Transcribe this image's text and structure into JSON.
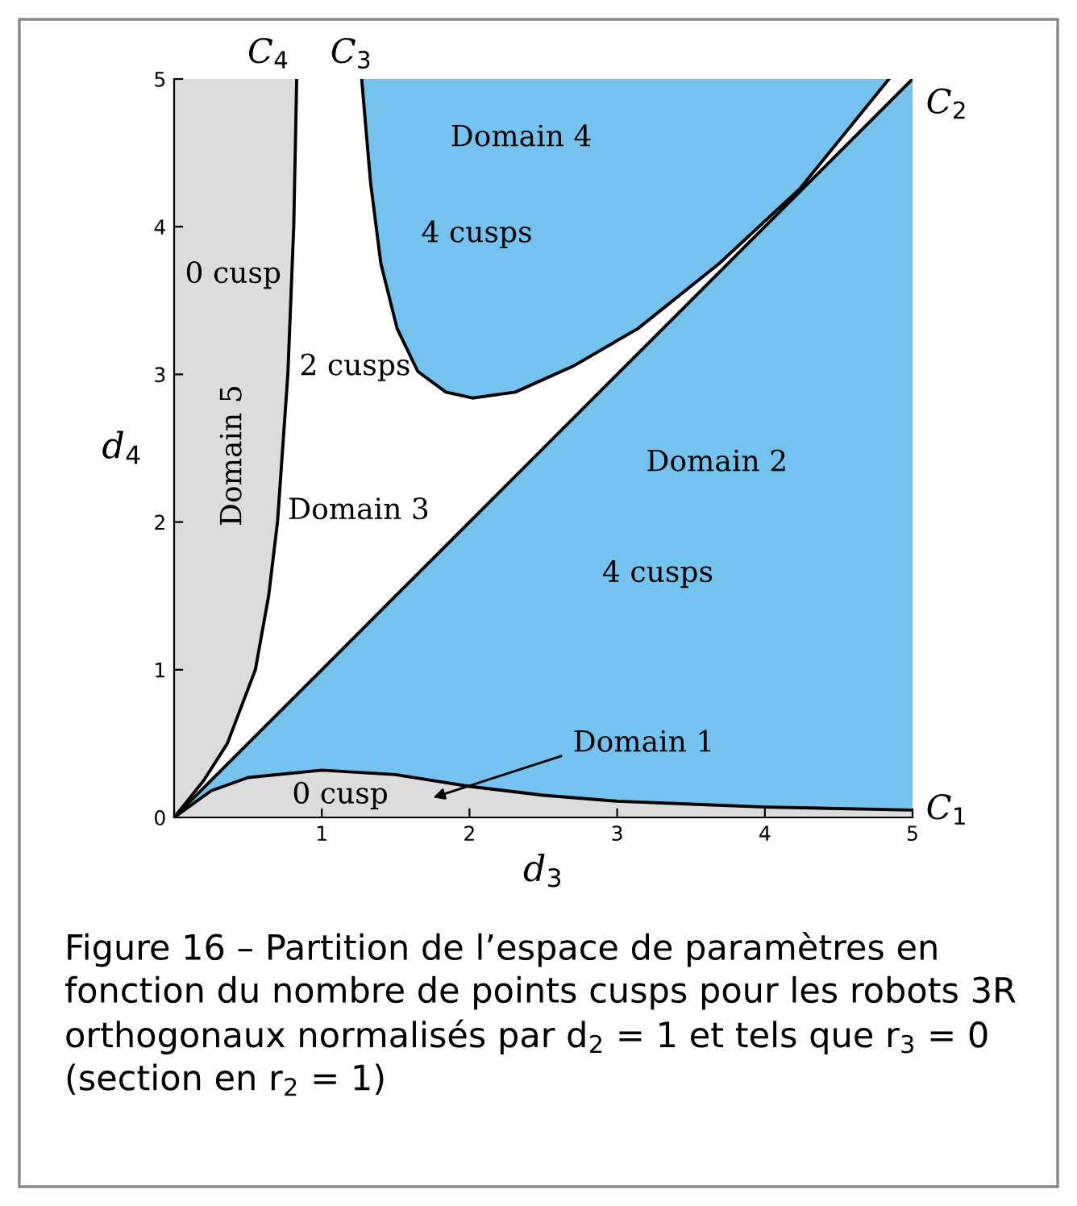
{
  "chart_data": {
    "type": "line",
    "xlabel": "d$_{3}$",
    "ylabel": "d$_{4}$",
    "xlim": [
      0,
      5
    ],
    "ylim": [
      0,
      5
    ],
    "xticks": [
      {
        "value": 0,
        "label": null
      },
      1,
      2,
      3,
      4,
      5
    ],
    "yticks": [
      0,
      1,
      2,
      3,
      4,
      5
    ],
    "colors": [
      "#dcdcdc",
      "#74c3ee",
      "#74c3ee",
      "#dcdcdc"
    ],
    "grid": false,
    "legend": false,
    "marker": "none",
    "line_style": "solid",
    "series": [
      {
        "name": "C$_{1}$",
        "color": "#000000",
        "x": [
          0,
          0.25,
          0.5,
          1,
          1.5,
          2,
          2.5,
          3,
          3.5,
          4,
          5
        ],
        "values": [
          0,
          0.18,
          0.27,
          0.32,
          0.29,
          0.21,
          0.15,
          0.11,
          0.09,
          0.07,
          0.05
        ],
        "lower": [
          0,
          0,
          0,
          0,
          0,
          0,
          0,
          0,
          0,
          0,
          0
        ],
        "upper": [
          0,
          0.18,
          0.27,
          0.32,
          0.29,
          0.21,
          0.15,
          0.11,
          0.09,
          0.07,
          0.05
        ]
      },
      {
        "name": "C$_{2}$",
        "color": "#000000",
        "x": [
          0,
          0.25,
          0.5,
          1,
          1.5,
          2,
          2.5,
          3,
          3.5,
          4,
          5
        ],
        "values": [
          0,
          0.25,
          0.5,
          1,
          1.5,
          2,
          2.5,
          3,
          3.5,
          4,
          5
        ],
        "lower": [
          0,
          0.18,
          0.27,
          0.32,
          0.29,
          0.21,
          0.15,
          0.11,
          0.09,
          0.07,
          0.05
        ],
        "upper": [
          0,
          0.25,
          0.5,
          1,
          1.5,
          2,
          2.5,
          3,
          3.5,
          4,
          5
        ]
      },
      {
        "name": "C$_{3}$",
        "color": "#000000",
        "x": [
          1.27,
          1.33,
          1.4,
          1.51,
          1.65,
          1.84,
          2.02,
          2.31,
          2.71,
          3.14,
          3.69,
          4.24,
          4.84
        ],
        "values": [
          5,
          4.3,
          3.75,
          3.31,
          3.02,
          2.88,
          2.84,
          2.88,
          3.06,
          3.31,
          3.75,
          4.26,
          5
        ],
        "lower": [
          5,
          4.3,
          3.75,
          3.31,
          3.02,
          2.88,
          2.84,
          2.88,
          3.06,
          3.31,
          3.75,
          4.26,
          5
        ],
        "upper": [
          5,
          5,
          5,
          5,
          5,
          5,
          5,
          5,
          5,
          5,
          5,
          5,
          5
        ]
      },
      {
        "name": "C$_{4}$",
        "color": "#000000",
        "x": [
          0,
          0.2,
          0.36,
          0.55,
          0.64,
          0.7,
          0.77,
          0.81,
          0.83
        ],
        "values": [
          0,
          0.25,
          0.5,
          1,
          1.5,
          2,
          3,
          4,
          5
        ],
        "lower": [
          0,
          0.25,
          0.5,
          1,
          1.5,
          2,
          3,
          4,
          5
        ],
        "upper": [
          5,
          5,
          5,
          5,
          5,
          5,
          5,
          5,
          5
        ]
      }
    ],
    "annotations": [
      "Domain 4",
      "4 cusps",
      "0 cusp",
      "Domain 5",
      "2 cusps",
      "Domain 3",
      "Domain 2",
      "4 cusps",
      "Domain 1",
      "0 cusp",
      "Figure 16 – Partition de l’espace de paramètres en fonction du nombre de points cusps pour les robots 3R orthogonaux normalisés par d$_{2}$ = 1 et tels que r$_{3}$ = 0 (section en r$_{2}$ = 1)"
    ]
  }
}
